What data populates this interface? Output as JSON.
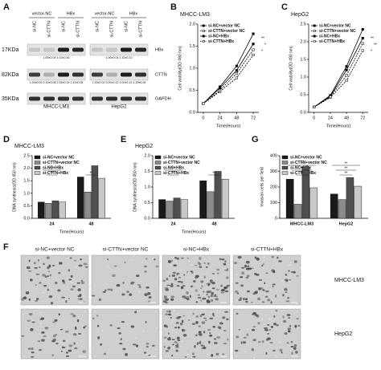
{
  "panel_labels": [
    "A",
    "B",
    "C",
    "D",
    "E",
    "G",
    "F"
  ],
  "western_blot": {
    "markers": [
      "17KDa",
      "82KDa",
      "35KDa"
    ],
    "proteins": [
      "HBx",
      "CTTN",
      "GAPDH"
    ],
    "groups": [
      {
        "cell_line": "MHCC-LM3",
        "headers": [
          "vector-NC",
          "HBx"
        ],
        "lanes": [
          "si-NC",
          "si-CTTN",
          "si-NC",
          "si-CTTN"
        ],
        "quant": [
          "1.00±0.04  1.02±0.46",
          "1.00±0.03 0.16±0.08 2.35±0.14 1.41±0.08"
        ]
      },
      {
        "cell_line": "HepG2",
        "headers": [
          "vector-NC",
          "HBx"
        ],
        "lanes": [
          "si-NC",
          "si-CTTN",
          "si-NC",
          "si-CTTN"
        ],
        "quant": [
          "1.00±0.04  1.10±0.10",
          "1.00±0.02 0.20±0.12 2.00±0.15 1.20±0.06"
        ]
      }
    ]
  },
  "chart_data": [
    {
      "type": "line",
      "title": "MHCC-LM3",
      "x_label": "Time(Hours)",
      "y_label": "Cell viability(OD 490 nm)",
      "x": [
        0,
        24,
        48,
        72
      ],
      "xlim": [
        -8,
        80
      ],
      "xticks": [
        0,
        24,
        48,
        72
      ],
      "ylim": [
        0,
        2
      ],
      "yticks": [
        {
          "value": 0,
          "label": "0.0"
        },
        {
          "value": 0.5,
          "label": "0.5"
        },
        {
          "value": 1,
          "label": "1.0"
        },
        {
          "value": 1.5,
          "label": "1.5"
        },
        {
          "value": 2,
          "label": "2.0"
        }
      ],
      "series": [
        {
          "name": "si-NC+vector NC",
          "color": "#000000",
          "dashed": false,
          "values": [
            0.2,
            0.55,
            0.95,
            1.55
          ]
        },
        {
          "name": "si-CTTN+vector NC",
          "color": "#000000",
          "dashed": true,
          "values": [
            0.2,
            0.47,
            0.78,
            1.3
          ]
        },
        {
          "name": "si-NC+HBx",
          "color": "#000000",
          "dashed": false,
          "values": [
            0.2,
            0.58,
            1.05,
            1.78
          ]
        },
        {
          "name": "si-CTTN+HBx",
          "color": "#000000",
          "dashed": true,
          "values": [
            0.2,
            0.5,
            0.88,
            1.42
          ]
        }
      ],
      "annotations": [
        "**",
        "*",
        "*"
      ]
    },
    {
      "type": "line",
      "title": "HepG2",
      "x_label": "Time(Hours)",
      "y_label": "Cell viability(OD 490 nm)",
      "x": [
        0,
        24,
        48,
        72
      ],
      "xlim": [
        -8,
        80
      ],
      "xticks": [
        0,
        24,
        48,
        72
      ],
      "ylim": [
        0,
        2.5
      ],
      "yticks": [
        {
          "value": 0,
          "label": "0.0"
        },
        {
          "value": 0.5,
          "label": "0.5"
        },
        {
          "value": 1,
          "label": "1.0"
        },
        {
          "value": 1.5,
          "label": "1.5"
        },
        {
          "value": 2,
          "label": "2.0"
        },
        {
          "value": 2.5,
          "label": "2.5"
        }
      ],
      "series": [
        {
          "name": "si-NC+vector NC",
          "color": "#000000",
          "dashed": false,
          "values": [
            0.15,
            0.45,
            1.2,
            2.1
          ]
        },
        {
          "name": "si-CTTN+vector NC",
          "color": "#000000",
          "dashed": true,
          "values": [
            0.15,
            0.42,
            0.9,
            1.75
          ]
        },
        {
          "name": "si-NC+HBx",
          "color": "#000000",
          "dashed": false,
          "values": [
            0.15,
            0.48,
            1.3,
            2.35
          ]
        },
        {
          "name": "si-CTTN+HBx",
          "color": "#000000",
          "dashed": true,
          "values": [
            0.15,
            0.44,
            1.05,
            1.95
          ]
        }
      ],
      "annotations": [
        "**",
        "**",
        "*"
      ]
    },
    {
      "type": "bar",
      "title": "MHCC-LM3",
      "x_label": "Time(Hours)",
      "y_label": "DNA synthesis(OD 450 nm)",
      "categories": [
        "24",
        "48"
      ],
      "ylim": [
        0,
        2.5
      ],
      "yticks": [
        {
          "value": 0,
          "label": "0.0"
        },
        {
          "value": 0.5,
          "label": "0.5"
        },
        {
          "value": 1,
          "label": "1.0"
        },
        {
          "value": 1.5,
          "label": "1.5"
        },
        {
          "value": 2,
          "label": "2.0"
        },
        {
          "value": 2.5,
          "label": "2.5"
        }
      ],
      "series": [
        {
          "name": "si-NC+vector NC",
          "color": "#1a1a1a",
          "values": [
            0.65,
            1.65
          ]
        },
        {
          "name": "si-CTTN+vector NC",
          "color": "#8c8c8c",
          "values": [
            0.6,
            1.05
          ]
        },
        {
          "name": "si-NC+HBx",
          "color": "#505050",
          "values": [
            0.7,
            2.1
          ]
        },
        {
          "name": "si-CTTN+HBx",
          "color": "#c8c8c8",
          "values": [
            0.65,
            1.6
          ]
        }
      ],
      "annotations": [
        "**",
        "**",
        "**"
      ]
    },
    {
      "type": "bar",
      "title": "HepG2",
      "x_label": "Time(Hours)",
      "y_label": "DNA synthesis(OD 450 nm)",
      "categories": [
        "24",
        "48"
      ],
      "ylim": [
        0,
        2
      ],
      "yticks": [
        {
          "value": 0,
          "label": "0.0"
        },
        {
          "value": 0.5,
          "label": "0.5"
        },
        {
          "value": 1,
          "label": "1.0"
        },
        {
          "value": 1.5,
          "label": "1.5"
        },
        {
          "value": 2,
          "label": "2.0"
        }
      ],
      "series": [
        {
          "name": "si-NC+vector NC",
          "color": "#1a1a1a",
          "values": [
            0.6,
            1.2
          ]
        },
        {
          "name": "si-CTTN+vector NC",
          "color": "#8c8c8c",
          "values": [
            0.55,
            0.85
          ]
        },
        {
          "name": "si-NC+HBx",
          "color": "#505050",
          "values": [
            0.65,
            1.5
          ]
        },
        {
          "name": "si-CTTN+HBx",
          "color": "#c8c8c8",
          "values": [
            0.6,
            1.25
          ]
        }
      ],
      "annotations": [
        "**",
        "**",
        "**"
      ]
    },
    {
      "type": "bar",
      "y_label": "Invasion cells per field",
      "categories": [
        "MHCC-LM3",
        "HepG2"
      ],
      "ylim": [
        0,
        400
      ],
      "yticks": [
        0,
        100,
        200,
        300,
        400
      ],
      "series": [
        {
          "name": "si-NC+vector NC",
          "color": "#1a1a1a",
          "values": [
            250,
            155
          ]
        },
        {
          "name": "si-CTTN+vector NC",
          "color": "#8c8c8c",
          "values": [
            90,
            120
          ]
        },
        {
          "name": "si-NC+HBx",
          "color": "#505050",
          "values": [
            330,
            260
          ]
        },
        {
          "name": "si-CTTN+HBx",
          "color": "#c8c8c8",
          "values": [
            195,
            205
          ]
        }
      ],
      "annotations": [
        "**",
        "**",
        "**",
        "**",
        "**",
        "**"
      ]
    }
  ],
  "micrographs": {
    "columns": [
      "si-NC+vector NC",
      "si-CTTN+vector NC",
      "si-NC+HBx",
      "si-CTTN+HBx"
    ],
    "rows": [
      "MHCC-LM3",
      "HepG2"
    ]
  }
}
